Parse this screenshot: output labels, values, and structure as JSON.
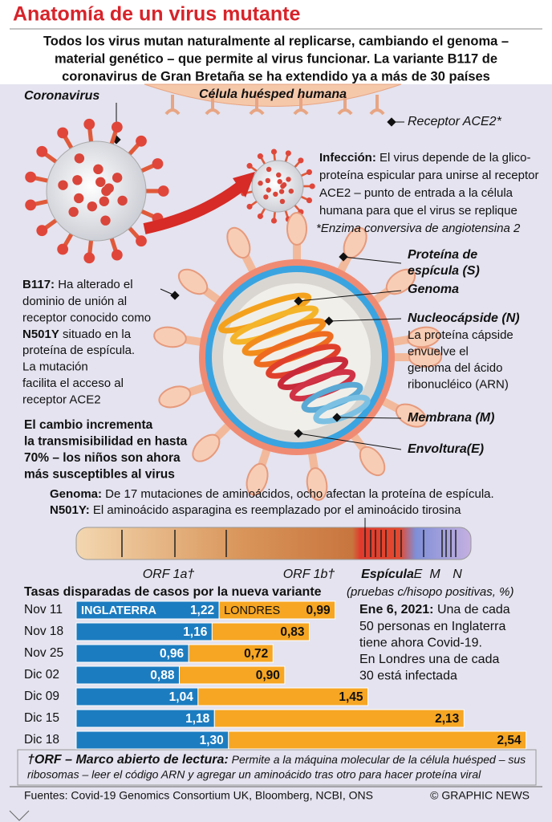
{
  "header": {
    "title": "Anatomía de un virus mutante",
    "subtitle": [
      "Todos los virus mutan naturalmente al replicarse, cambiando el genoma –",
      "material genético – que permite al virus funcionar. La variante B117 de",
      "coronavirus de Gran Bretaña se ha extendido ya a más de 30 países"
    ]
  },
  "diagram": {
    "coronavirus": "Coronavirus",
    "host_cell": "Célula huésped humana",
    "receptor": "Receptor ACE2*",
    "infection": {
      "label": "Infección:",
      "first": " El virus depende de la glico-",
      "lines": [
        "proteína espicular para unirse al receptor",
        "ACE2 – punto de entrada a la célula",
        "humana para que el virus se replique"
      ]
    },
    "footnote_ace2": "*Enzima conversiva de angiotensina 2",
    "b117": {
      "label": "B117:",
      "first": " Ha alterado el",
      "lines": [
        "dominio de unión al",
        "receptor conocido como"
      ],
      "mutation": "N501Y",
      "mutation_rest": " situado en la",
      "lines2": [
        "proteína de espícula.",
        "La mutación",
        "facilita el acceso al",
        "receptor ACE2"
      ]
    },
    "transmission": [
      "El cambio incrementa",
      "la transmisibilidad en hasta",
      "70% – los niños son ahora",
      "más susceptibles al virus"
    ],
    "parts": [
      {
        "name": [
          "Proteína de",
          "espícula (S)"
        ]
      },
      {
        "name": [
          "Genoma"
        ]
      },
      {
        "name": [
          "Nucleocápside (N)"
        ],
        "desc": [
          "La proteína cápside",
          "envuelve el",
          "genoma del ácido",
          "ribonucléico (ARN)"
        ]
      },
      {
        "name": [
          "Membrana (M)"
        ]
      },
      {
        "name": [
          "Envoltura(E)"
        ]
      }
    ]
  },
  "genome": {
    "genoma_label": "Genoma:",
    "genoma_text": " De 17 mutaciones de aminoácidos, ocho afectan la proteína de espícula.",
    "n501y_label": "N501Y:",
    "n501y_text": " El aminoácido asparagina es reemplazado por el aminoácido tirosina",
    "regions": [
      "ORF 1a†",
      "ORF 1b†",
      "Espícula",
      "E",
      "M",
      "N"
    ]
  },
  "chart_data": {
    "type": "bar",
    "orientation": "horizontal",
    "stacked": true,
    "title": "Tasas disparadas de casos por la nueva variante",
    "subtitle": "(pruebas c/hisopo positivas, %)",
    "categories": [
      "Nov 11",
      "Nov 18",
      "Nov 25",
      "Dic 02",
      "Dic 09",
      "Dic 15",
      "Dic 18"
    ],
    "series": [
      {
        "name": "INGLATERRA",
        "color": "#1c7cc0",
        "values": [
          1.22,
          1.16,
          0.96,
          0.88,
          1.04,
          1.18,
          1.3
        ],
        "value_labels": [
          "1,22",
          "1,16",
          "0,96",
          "0,88",
          "1,04",
          "1,18",
          "1,30"
        ]
      },
      {
        "name": "LONDRES",
        "color": "#f6a623",
        "values": [
          0.99,
          0.83,
          0.72,
          0.9,
          1.45,
          2.13,
          2.54
        ],
        "value_labels": [
          "0,99",
          "0,83",
          "0,72",
          "0,90",
          "1,45",
          "2,13",
          "2,54"
        ]
      }
    ]
  },
  "callout": {
    "label": "Ene 6, 2021:",
    "first": " Una de cada",
    "lines": [
      "50 personas en Inglaterra",
      "tiene ahora Covid-19.",
      "En Londres una de cada",
      "30 está infectada"
    ]
  },
  "footnote": {
    "label": "†ORF – Marco abierto de lectura:",
    "first": " Permite a la máquina molecular de la célula huésped – sus",
    "lines": [
      "ribosomas – leer el código ARN y agregar un aminoácido tras otro para hacer proteína viral"
    ]
  },
  "footer": {
    "sources": "Fuentes: Covid-19 Genomics Consortium UK, Bloomberg, NCBI, ONS",
    "credit": "© GRAPHIC NEWS"
  }
}
